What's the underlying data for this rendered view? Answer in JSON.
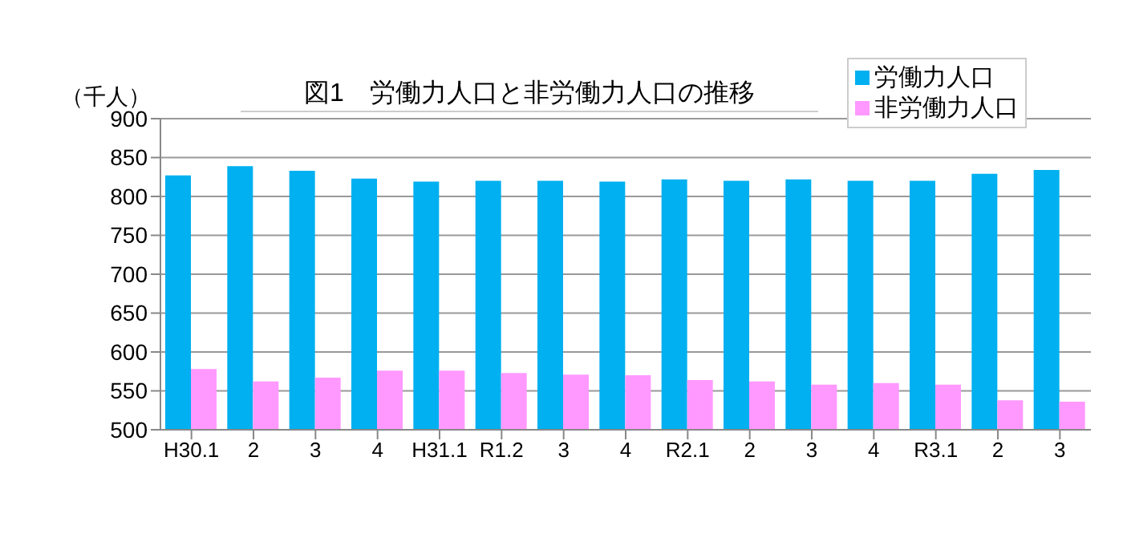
{
  "chart_data": {
    "type": "bar",
    "title": "図1　労働力人口と非労働力人口の推移",
    "ylabel": "（千人）",
    "categories": [
      "H30.1",
      "2",
      "3",
      "4",
      "H31.1",
      "R1.2",
      "3",
      "4",
      "R2.1",
      "2",
      "3",
      "4",
      "R3.1",
      "2",
      "3"
    ],
    "series": [
      {
        "name": "労働力人口",
        "color": "#00b0f0",
        "values": [
          827,
          839,
          833,
          823,
          819,
          820,
          820,
          819,
          822,
          820,
          822,
          820,
          820,
          829,
          834
        ]
      },
      {
        "name": "非労働力人口",
        "color": "#ff99ff",
        "values": [
          578,
          562,
          567,
          576,
          576,
          573,
          571,
          570,
          564,
          562,
          558,
          560,
          558,
          538,
          536
        ]
      }
    ],
    "ylim": [
      500,
      900
    ],
    "yticks": [
      500,
      550,
      600,
      650,
      700,
      750,
      800,
      850,
      900
    ],
    "grid": "y",
    "legend": "top right"
  }
}
